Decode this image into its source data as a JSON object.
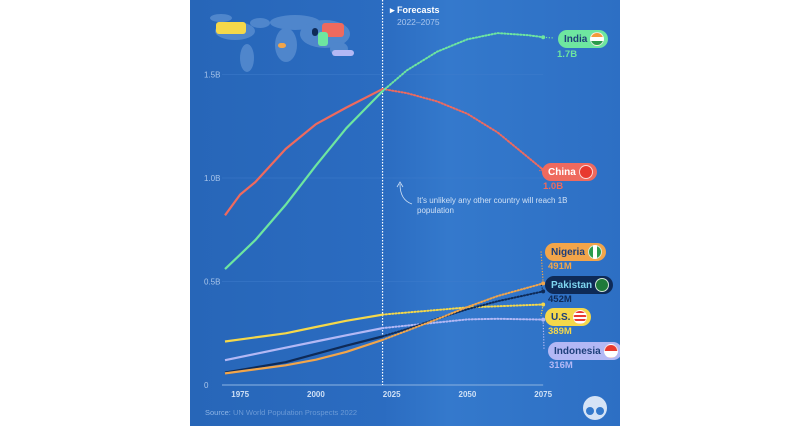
{
  "chart_data": {
    "type": "line",
    "xlabel": "",
    "ylabel": "",
    "xlim": [
      1970,
      2075
    ],
    "ylim": [
      0,
      1.8
    ],
    "x_ticks": [
      "1975",
      "2000",
      "2025",
      "2050",
      "2075"
    ],
    "y_ticks": [
      "0",
      "0.5B",
      "1.0B",
      "1.5B"
    ],
    "grid": "horizontal",
    "forecast_start_year": 2022,
    "forecast_label": "Forecasts",
    "forecast_range": "2022–2075",
    "annotation": "It's unlikely any other country will reach 1B population",
    "source_label": "Source:",
    "source_text": "UN World Population Prospects 2022",
    "series": [
      {
        "name": "India",
        "end_label": "1.7B",
        "color": "#6ee6a0",
        "label_bg": "#6ee6a0",
        "label_fg": "#1d3f7a",
        "x": [
          1970,
          1980,
          1990,
          2000,
          2010,
          2022,
          2030,
          2040,
          2050,
          2060,
          2070,
          2075
        ],
        "y": [
          0.56,
          0.7,
          0.87,
          1.06,
          1.24,
          1.42,
          1.52,
          1.61,
          1.67,
          1.7,
          1.69,
          1.68
        ]
      },
      {
        "name": "China",
        "end_label": "1.0B",
        "color": "#ef6a5e",
        "label_bg": "#ef6a5e",
        "label_fg": "#ffffff",
        "x": [
          1970,
          1975,
          1980,
          1990,
          2000,
          2010,
          2022,
          2030,
          2040,
          2050,
          2060,
          2070,
          2075
        ],
        "y": [
          0.82,
          0.92,
          0.98,
          1.14,
          1.26,
          1.34,
          1.43,
          1.41,
          1.37,
          1.31,
          1.22,
          1.1,
          1.04
        ]
      },
      {
        "name": "Nigeria",
        "end_label": "491M",
        "color": "#f2a54a",
        "label_bg": "#f2a54a",
        "label_fg": "#1d3f7a",
        "x": [
          1970,
          1990,
          2000,
          2010,
          2022,
          2030,
          2040,
          2050,
          2060,
          2075
        ],
        "y": [
          0.056,
          0.095,
          0.122,
          0.16,
          0.218,
          0.262,
          0.318,
          0.377,
          0.43,
          0.491
        ]
      },
      {
        "name": "Pakistan",
        "end_label": "452M",
        "color": "#0e2a57",
        "label_bg": "#0e2a57",
        "label_fg": "#7fd6f0",
        "x": [
          1970,
          1990,
          2000,
          2010,
          2022,
          2030,
          2040,
          2050,
          2060,
          2075
        ],
        "y": [
          0.06,
          0.11,
          0.15,
          0.19,
          0.235,
          0.27,
          0.32,
          0.366,
          0.405,
          0.452
        ]
      },
      {
        "name": "U.S.",
        "end_label": "389M",
        "color": "#f5d84a",
        "label_bg": "#f5d84a",
        "label_fg": "#1d3f7a",
        "x": [
          1970,
          1980,
          1990,
          2000,
          2010,
          2022,
          2050,
          2075
        ],
        "y": [
          0.21,
          0.23,
          0.25,
          0.28,
          0.31,
          0.34,
          0.375,
          0.389
        ]
      },
      {
        "name": "Indonesia",
        "end_label": "316M",
        "color": "#b3b8f5",
        "label_bg": "#b3b8f5",
        "label_fg": "#1d3f7a",
        "x": [
          1970,
          1980,
          1990,
          2000,
          2010,
          2022,
          2050,
          2060,
          2075
        ],
        "y": [
          0.12,
          0.15,
          0.18,
          0.21,
          0.24,
          0.275,
          0.317,
          0.32,
          0.316
        ]
      }
    ]
  }
}
